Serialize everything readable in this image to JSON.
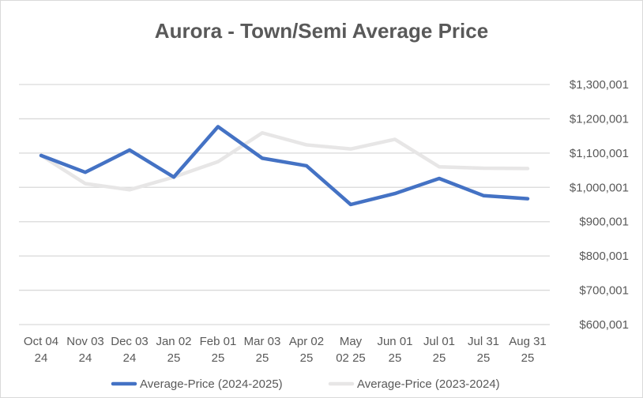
{
  "chart_data": {
    "type": "line",
    "title": "Aurora  - Town/Semi Average Price",
    "xlabel": "",
    "ylabel": "",
    "categories": [
      [
        "Oct 04",
        "24"
      ],
      [
        "Nov 03",
        "24"
      ],
      [
        "Dec 03",
        "24"
      ],
      [
        "Jan 02",
        "25"
      ],
      [
        "Feb 01",
        "25"
      ],
      [
        "Mar 03",
        "25"
      ],
      [
        "Apr 02",
        "25"
      ],
      [
        "May",
        "02 25"
      ],
      [
        "Jun 01",
        "25"
      ],
      [
        "Jul 01",
        "25"
      ],
      [
        "Jul 31",
        "25"
      ],
      [
        "Aug 31",
        "25"
      ]
    ],
    "yticks": [
      "$600,001",
      "$700,001",
      "$800,001",
      "$900,001",
      "$1,000,001",
      "$1,100,001",
      "$1,200,001",
      "$1,300,001"
    ],
    "ylim": [
      600001,
      1300001
    ],
    "grid": true,
    "legend_position": "bottom",
    "series": [
      {
        "name": "Average-Price (2024-2025)",
        "color": "#4472c4",
        "values": [
          1093000,
          1044000,
          1109000,
          1030000,
          1177000,
          1085000,
          1063000,
          950000,
          982000,
          1026000,
          976000,
          967000
        ]
      },
      {
        "name": "Average-Price (2023-2024)",
        "color": "#e7e6e6",
        "values": [
          1093000,
          1011000,
          993000,
          1030000,
          1075000,
          1159000,
          1124000,
          1112000,
          1140000,
          1060000,
          1056000,
          1055000
        ]
      }
    ]
  }
}
